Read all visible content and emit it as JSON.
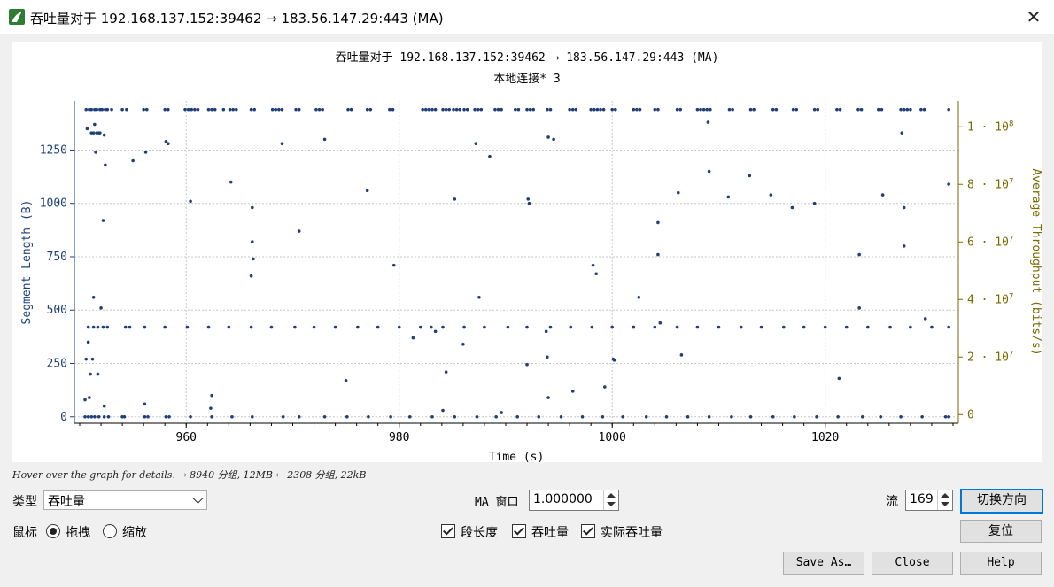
{
  "window": {
    "title": "吞吐量对于 192.168.137.152:39462 → 183.56.147.29:443 (MA)"
  },
  "plot": {
    "title": "吞吐量对于 192.168.137.152:39462 → 183.56.147.29:443 (MA)",
    "subtitle": "本地连接* 3"
  },
  "hint": "Hover over the graph for details. → 8940 分组, 12MB ← 2308 分组, 22kB",
  "controls": {
    "type_label": "类型",
    "type_value": "吞吐量",
    "ma_label": "MA 窗口",
    "ma_value": "1.000000",
    "stream_label": "流",
    "stream_value": "169",
    "mouse_label": "鼠标",
    "drag_label": "拖拽",
    "zoom_label": "缩放",
    "mouse_mode": "拖拽",
    "seg_len_label": "段长度",
    "seg_len_checked": true,
    "throughput_label": "吞吐量",
    "throughput_checked": true,
    "goodput_label": "实际吞吐量",
    "goodput_checked": true
  },
  "buttons": {
    "switch_direction": "切换方向",
    "reset": "复位",
    "save_as": "Save As…",
    "close": "Close",
    "help": "Help"
  },
  "colors": {
    "segment": "#1f3f7a",
    "throughput_axis": "#7a6a00",
    "grid": "#c8c8c8"
  },
  "chart_data": {
    "type": "scatter",
    "xlabel": "Time (s)",
    "ylabel": "Segment Length (B)",
    "y2label": "Average Throughput (bits/s)",
    "xlim": [
      949.5,
      1032.5
    ],
    "ylim": [
      -30,
      1480
    ],
    "y2lim": [
      -3000000.0,
      109000000.0
    ],
    "x_ticks": [
      "960",
      "980",
      "1000",
      "1020"
    ],
    "y_ticks": [
      "0",
      "250",
      "500",
      "750",
      "1000",
      "1250"
    ],
    "y2_ticks": [
      {
        "base": "0",
        "exp": ""
      },
      {
        "base": "2 · 10",
        "exp": "7"
      },
      {
        "base": "4 · 10",
        "exp": "7"
      },
      {
        "base": "6 · 10",
        "exp": "7"
      },
      {
        "base": "8 · 10",
        "exp": "7"
      },
      {
        "base": "1 · 10",
        "exp": "8"
      }
    ],
    "grid": true,
    "series": [
      {
        "name": "Segment Length",
        "bands": {
          "full_segments": {
            "y": 1440,
            "x": [
              950.6,
              950.9,
              951.1,
              951.4,
              951.6,
              951.9,
              952.1,
              952.4,
              952.6,
              953.0,
              954.0,
              954.4,
              956.0,
              956.3,
              958.0,
              958.3,
              959.9,
              960.2,
              960.5,
              960.8,
              961.1,
              962.1,
              962.4,
              962.7,
              964.1,
              964.4,
              964.7,
              966.1,
              966.4,
              968.1,
              968.4,
              968.7,
              969.0,
              970.3,
              970.6,
              972.2,
              972.5,
              972.8,
              975.2,
              975.5,
              977.0,
              977.3,
              979.1,
              979.4,
              982.2,
              982.5,
              982.8,
              983.1,
              983.4,
              984.1,
              984.4,
              984.7,
              985.1,
              985.4,
              985.7,
              986.1,
              986.4,
              987.1,
              987.4,
              987.7,
              989.0,
              989.3,
              989.6,
              990.9,
              991.2,
              992.0,
              992.3,
              992.6,
              993.9,
              994.2,
              996.0,
              996.3,
              996.6,
              998.0,
              998.3,
              998.6,
              998.9,
              999.2,
              1000.0,
              1000.3,
              1002.0,
              1002.3,
              1002.6,
              1004.0,
              1004.3,
              1006.1,
              1006.4,
              1008.0,
              1008.3,
              1008.6,
              1008.9,
              1009.2,
              1011.0,
              1011.3,
              1013.0,
              1013.3,
              1015.1,
              1015.4,
              1017.0,
              1017.3,
              1019.0,
              1019.3,
              1021.1,
              1021.4,
              1023.1,
              1023.4,
              1025.0,
              1025.3,
              1027.1,
              1027.4,
              1027.7,
              1028.0,
              1029.0,
              1029.3,
              1031.6
            ]
          },
          "mid_band": {
            "y": 420,
            "x": [
              950.8,
              951.3,
              951.7,
              952.2,
              952.6,
              954.3,
              954.7,
              956.1,
              958.0,
              960.1,
              962.1,
              964.0,
              966.1,
              968.0,
              970.2,
              972.0,
              974.0,
              976.1,
              978.0,
              980.0,
              982.0,
              984.1,
              986.1,
              988.0,
              990.2,
              992.0,
              994.2,
              996.1,
              998.1,
              1000.0,
              1002.0,
              1004.0,
              1006.1,
              1008.0,
              1010.0,
              1012.1,
              1014.0,
              1016.1,
              1018.0,
              1020.0,
              1022.0,
              1024.0,
              1026.1,
              1028.0,
              1030.0,
              1031.6
            ]
          },
          "zero_band": {
            "y": 0,
            "x": [
              950.5,
              950.8,
              951.1,
              951.4,
              951.8,
              952.3,
              952.7,
              954.0,
              954.2,
              956.1,
              956.4,
              958.1,
              958.4,
              960.4,
              962.4,
              964.3,
              966.2,
              969.1,
              970.6,
              973.0,
              975.1,
              977.1,
              979.2,
              981.0,
              983.1,
              985.2,
              987.3,
              989.1,
              991.1,
              993.1,
              995.2,
              997.2,
              999.1,
              1001.0,
              1003.2,
              1005.1,
              1007.1,
              1009.1,
              1011.2,
              1013.0,
              1015.1,
              1017.1,
              1019.2,
              1021.2,
              1023.5,
              1025.2,
              1027.1,
              1029.1,
              1031.3,
              1031.6
            ]
          }
        },
        "scatter": {
          "x": [
            950.5,
            950.6,
            950.8,
            951.0,
            951.2,
            951.4,
            951.6,
            951.8,
            952.0,
            952.2,
            950.7,
            951.1,
            951.3,
            951.5,
            951.9,
            952.4,
            950.9,
            951.3,
            951.7,
            952.3,
            955.0,
            956.2,
            958.1,
            958.3,
            956.1,
            962.4,
            962.3,
            964.2,
            966.2,
            966.2,
            966.3,
            966.1,
            969.0,
            970.6,
            973.0,
            975.0,
            977.0,
            979.5,
            981.3,
            983.0,
            983.4,
            984.4,
            984.1,
            985.2,
            986.0,
            987.2,
            987.5,
            989.6,
            992.0,
            992.1,
            992.2,
            993.8,
            994.0,
            994.0,
            993.9,
            996.3,
            998.2,
            998.5,
            999.3,
            1000.2,
            1000.1,
            1002.0,
            1002.5,
            1004.5,
            1004.3,
            1004.3,
            1006.2,
            1006.5,
            1009.0,
            1009.1,
            1010.9,
            1012.9,
            1014.9,
            1016.9,
            1019.0,
            1021.3,
            1023.2,
            1023.2,
            1025.4,
            1027.2,
            1027.4,
            1027.4,
            1029.4,
            1031.6,
            952.3,
            960.4,
            963.5,
            988.5,
            994.5
          ],
          "y": [
            80,
            270,
            350,
            200,
            270,
            1370,
            1330,
            1330,
            510,
            920,
            1350,
            1330,
            1330,
            1240,
            1330,
            1180,
            90,
            560,
            200,
            50,
            1200,
            1240,
            1290,
            1280,
            60,
            100,
            40,
            1100,
            980,
            820,
            740,
            660,
            1280,
            870,
            1300,
            170,
            1060,
            710,
            370,
            420,
            400,
            210,
            30,
            1020,
            340,
            1280,
            560,
            20,
            245,
            1020,
            1000,
            400,
            1310,
            90,
            280,
            120,
            710,
            670,
            140,
            265,
            270,
            420,
            560,
            440,
            760,
            910,
            1050,
            290,
            1380,
            1150,
            1030,
            1130,
            1040,
            980,
            1000,
            180,
            760,
            510,
            1040,
            1330,
            800,
            980,
            460,
            1090,
            1320,
            1010,
            1440,
            1220,
            1300
          ]
        }
      }
    ]
  }
}
